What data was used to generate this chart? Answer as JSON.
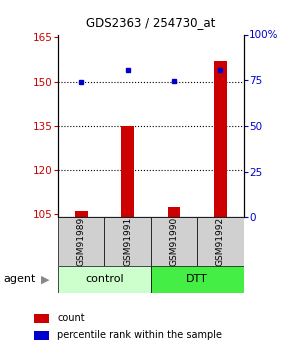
{
  "title": "GDS2363 / 254730_at",
  "samples": [
    "GSM91989",
    "GSM91991",
    "GSM91990",
    "GSM91992"
  ],
  "counts": [
    106.0,
    135.0,
    107.5,
    157.0
  ],
  "percentiles": [
    74.0,
    80.5,
    74.5,
    80.5
  ],
  "ylim_left": [
    104,
    166
  ],
  "ylim_right": [
    0,
    100
  ],
  "yticks_left": [
    105,
    120,
    135,
    150,
    165
  ],
  "yticks_right": [
    0,
    25,
    50,
    75,
    100
  ],
  "ytick_labels_right": [
    "0",
    "25",
    "50",
    "75",
    "100%"
  ],
  "bar_color": "#cc0000",
  "dot_color": "#0000cc",
  "control_color": "#ccffcc",
  "dtt_color": "#44ee44",
  "legend_count": "count",
  "legend_percentile": "percentile rank within the sample",
  "title_fontsize": 8.5,
  "tick_fontsize": 7.5,
  "sample_fontsize": 6.5,
  "group_fontsize": 8,
  "legend_fontsize": 7
}
